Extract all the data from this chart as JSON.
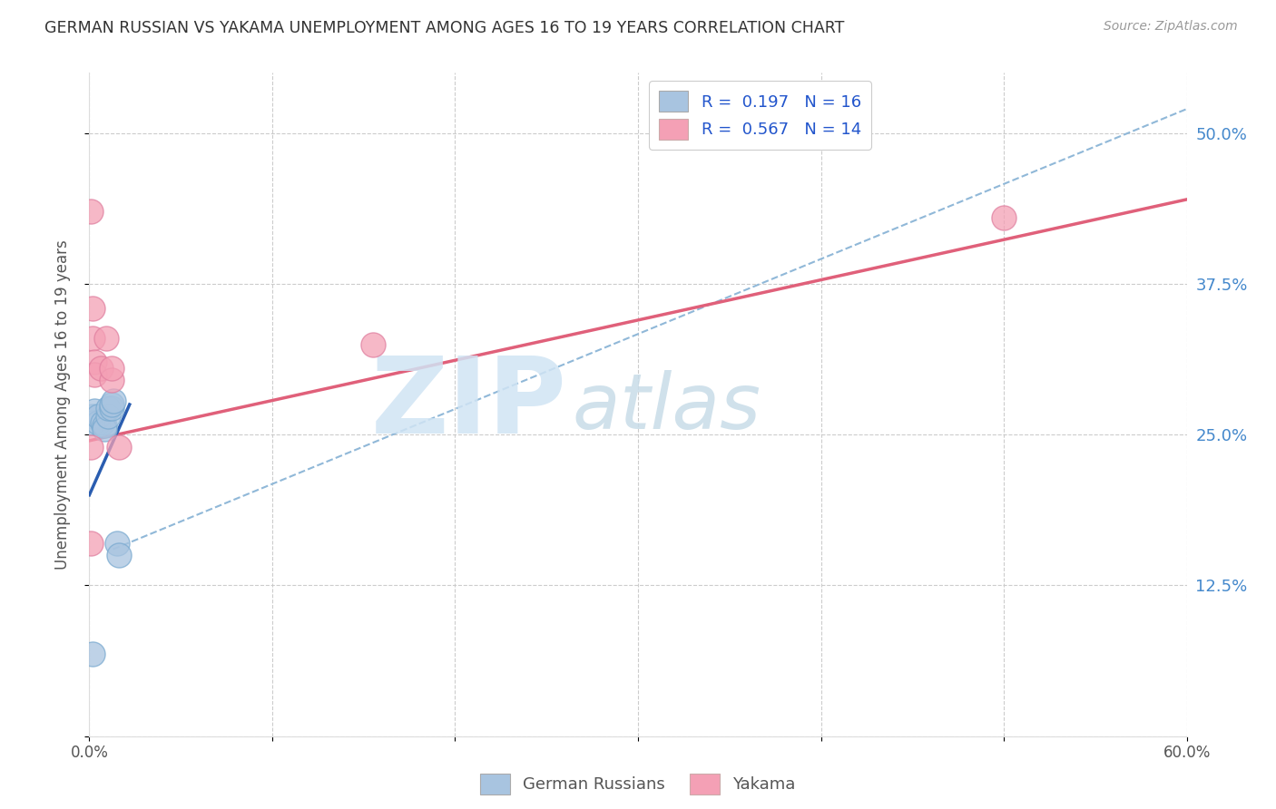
{
  "title": "GERMAN RUSSIAN VS YAKAMA UNEMPLOYMENT AMONG AGES 16 TO 19 YEARS CORRELATION CHART",
  "source": "Source: ZipAtlas.com",
  "ylabel": "Unemployment Among Ages 16 to 19 years",
  "xlim": [
    0.0,
    0.6
  ],
  "ylim": [
    0.0,
    0.55
  ],
  "x_ticks": [
    0.0,
    0.1,
    0.2,
    0.3,
    0.4,
    0.5,
    0.6
  ],
  "x_tick_labels": [
    "0.0%",
    "",
    "",
    "",
    "",
    "",
    "60.0%"
  ],
  "y_ticks": [
    0.0,
    0.125,
    0.25,
    0.375,
    0.5
  ],
  "y_tick_right_labels": [
    "",
    "12.5%",
    "25.0%",
    "37.5%",
    "50.0%"
  ],
  "legend_r1": "R =  0.197   N = 16",
  "legend_r2": "R =  0.567   N = 14",
  "legend_bottom_1": "German Russians",
  "legend_bottom_2": "Yakama",
  "blue_color": "#a8c4e0",
  "pink_color": "#f4a0b5",
  "line_blue_color": "#2a5db0",
  "line_pink_color": "#e0607a",
  "dashed_line_color": "#90b8d8",
  "watermark_zip": "ZIP",
  "watermark_atlas": "atlas",
  "german_russian_x": [
    0.002,
    0.002,
    0.003,
    0.005,
    0.005,
    0.007,
    0.008,
    0.008,
    0.01,
    0.01,
    0.012,
    0.012,
    0.013,
    0.015,
    0.016,
    0.002
  ],
  "german_russian_y": [
    0.265,
    0.26,
    0.27,
    0.26,
    0.265,
    0.26,
    0.258,
    0.255,
    0.265,
    0.272,
    0.272,
    0.275,
    0.278,
    0.16,
    0.15,
    0.068
  ],
  "yakama_x": [
    0.001,
    0.002,
    0.002,
    0.003,
    0.003,
    0.006,
    0.009,
    0.012,
    0.012,
    0.016,
    0.155,
    0.5,
    0.001,
    0.001
  ],
  "yakama_y": [
    0.435,
    0.355,
    0.33,
    0.31,
    0.3,
    0.305,
    0.33,
    0.295,
    0.305,
    0.24,
    0.325,
    0.43,
    0.16,
    0.24
  ],
  "blue_trendline_x": [
    0.0,
    0.022
  ],
  "blue_trendline_y": [
    0.2,
    0.275
  ],
  "pink_trendline_x": [
    0.0,
    0.6
  ],
  "pink_trendline_y": [
    0.245,
    0.445
  ],
  "dashed_trendline_x": [
    0.013,
    0.6
  ],
  "dashed_trendline_y": [
    0.155,
    0.52
  ]
}
